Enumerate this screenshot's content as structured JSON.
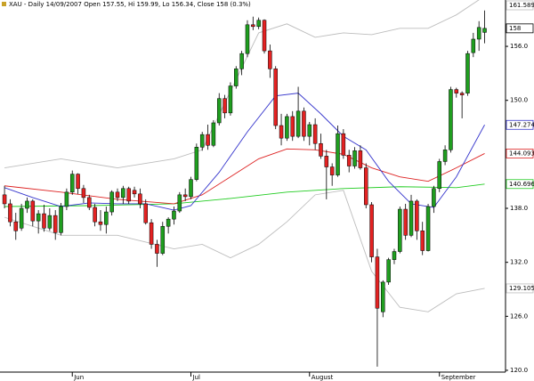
{
  "chart_data": {
    "type": "candlestick",
    "title": "XAU - Daily 14/09/2007 Open 157.55, Hi 159.99, Lo 156.34, Close 158 (0.3%)",
    "xlim": [
      -0.8,
      88.7
    ],
    "ylim": [
      119.8,
      161.15
    ],
    "xticks": [
      {
        "value": 12,
        "label": "Jun"
      },
      {
        "value": 33,
        "label": "Jul"
      },
      {
        "value": 54,
        "label": "August"
      },
      {
        "value": 77,
        "label": "September"
      }
    ],
    "yticks": [
      {
        "value": 120,
        "label": "120.0"
      },
      {
        "value": 126,
        "label": "126.0"
      },
      {
        "value": 132,
        "label": "132.0"
      },
      {
        "value": 138,
        "label": "138.0"
      },
      {
        "value": 150,
        "label": "150.0"
      },
      {
        "value": 156,
        "label": "156.0"
      }
    ],
    "up_color": "#1f9e1f",
    "down_color": "#e32222",
    "open": [
      139.5,
      138.5,
      136.5,
      135.8,
      138,
      138.8,
      136.6,
      137.4,
      135.8,
      137.2,
      135.3,
      138.2,
      139.8,
      141.8,
      140.2,
      139.2,
      138.1,
      136.5,
      136.2,
      137.6,
      139.8,
      139.2,
      140.2,
      140,
      139.6,
      138.5,
      136.4,
      134,
      133,
      136,
      136.8,
      137.7,
      139.5,
      139.3,
      141.2,
      144.8,
      146.2,
      145,
      147.5,
      150.2,
      148.6,
      151.6,
      153.5,
      155.2,
      158.4,
      158.2,
      158.9,
      155.5,
      153.5,
      147.2,
      145.8,
      148.2,
      146,
      148.8,
      146,
      147.3,
      145.2,
      143.8,
      142.6,
      141.7,
      146.3,
      143.9,
      142.7,
      144.4,
      142.5,
      138.4,
      132.6,
      126.5,
      129.8,
      132.3,
      133.2,
      137.9,
      135,
      138.8,
      135.5,
      133.3,
      138.2,
      140.2,
      143.2,
      144.5,
      151.2,
      150.8,
      150.8,
      155.3,
      156.8,
      157.55
    ],
    "high": [
      140.5,
      139,
      137.5,
      138.5,
      139.2,
      139,
      137.8,
      138.4,
      138,
      137.8,
      138.6,
      140.2,
      142.2,
      141.9,
      140.6,
      139.5,
      138.5,
      137.8,
      138.2,
      140,
      140.2,
      140.5,
      140.4,
      140.4,
      140.2,
      139,
      136.8,
      134.5,
      136.5,
      137,
      138.2,
      139.8,
      140.2,
      141.5,
      145.2,
      146.5,
      147.3,
      147.8,
      150.8,
      150.6,
      152,
      153.8,
      155.5,
      158.9,
      159.3,
      159.2,
      159,
      156.2,
      153.8,
      148.5,
      148.5,
      148.8,
      151.5,
      149.2,
      147.6,
      148,
      146.3,
      144.5,
      143,
      147.2,
      146.8,
      144.5,
      144.8,
      145,
      143,
      138.7,
      133.5,
      130,
      132.5,
      133.5,
      138.2,
      138.5,
      139.5,
      139,
      136.5,
      138.5,
      140.5,
      143.5,
      145,
      151.5,
      151.4,
      151,
      155.5,
      157.5,
      158.8,
      159.99
    ],
    "low": [
      138,
      136,
      134.5,
      135.5,
      137.5,
      136,
      135.2,
      135.4,
      135.5,
      134.5,
      135,
      137.8,
      139.5,
      139.6,
      138.6,
      137.8,
      136,
      135.5,
      135.2,
      137.2,
      138.8,
      138.5,
      138.5,
      139.2,
      138,
      136.2,
      133.5,
      131.5,
      132.8,
      135.2,
      136.2,
      137.5,
      138.8,
      139,
      141,
      144.4,
      144.5,
      144.8,
      147.2,
      148,
      148.3,
      151.3,
      152.8,
      154.8,
      157.8,
      157.9,
      155.2,
      152.5,
      146.8,
      145,
      145.5,
      145.5,
      145.8,
      145.5,
      145,
      144.5,
      143.5,
      139,
      140.5,
      141.5,
      143.5,
      142,
      142.4,
      142.3,
      138,
      132,
      120.4,
      125.9,
      129.5,
      131.8,
      133,
      134.5,
      134.8,
      134.5,
      132.8,
      133.2,
      137.5,
      139.8,
      142.8,
      144.2,
      150.3,
      148,
      150.5,
      154.8,
      155.5,
      156.34
    ],
    "close": [
      138.5,
      136.5,
      135.5,
      138,
      138.8,
      136.6,
      137.4,
      135.8,
      137.2,
      135.3,
      138.2,
      139.8,
      141.8,
      140.2,
      139.2,
      138.1,
      136.5,
      136.2,
      137.6,
      139.8,
      139.2,
      140.2,
      138.8,
      139.6,
      138.5,
      136.4,
      134,
      133,
      136,
      136.8,
      137.7,
      139.5,
      139.3,
      141.2,
      144.8,
      146.2,
      145,
      147.5,
      150.2,
      148.6,
      151.6,
      153.5,
      155.2,
      158.4,
      158.2,
      158.9,
      155.5,
      153.5,
      147.2,
      145.8,
      148.2,
      146,
      148.8,
      146,
      147.3,
      145.2,
      143.8,
      142.6,
      141.7,
      146.3,
      143.9,
      142.7,
      144.4,
      142.5,
      138.4,
      132.6,
      126.9,
      129.8,
      132.3,
      133.2,
      137.9,
      135,
      138.8,
      135.5,
      133.3,
      138.2,
      140.2,
      143.2,
      144.5,
      151.2,
      150.8,
      150.6,
      155.2,
      156.8,
      158.1,
      158
    ],
    "lines": [
      {
        "color": "#bdbdbd",
        "x": [
          0,
          10,
          20,
          30,
          35,
          40,
          45,
          50,
          55,
          60,
          65,
          70,
          75,
          80,
          85
        ],
        "values": [
          142.5,
          143.5,
          142.5,
          143.5,
          144.5,
          151,
          157.5,
          158.5,
          157,
          157.5,
          157.3,
          158,
          158,
          159.5,
          161.589
        ]
      },
      {
        "color": "#bdbdbd",
        "x": [
          0,
          10,
          20,
          30,
          35,
          40,
          45,
          50,
          55,
          60,
          65,
          70,
          75,
          80,
          85
        ],
        "values": [
          137,
          135,
          135,
          133.5,
          134,
          132.5,
          134,
          136.5,
          139.5,
          140,
          131,
          127,
          126.5,
          128.5,
          129.105
        ]
      },
      {
        "color": "#22cc22",
        "x": [
          0,
          15,
          30,
          40,
          50,
          60,
          70,
          80,
          85
        ],
        "values": [
          138.2,
          138.3,
          138.5,
          139.1,
          139.8,
          140.2,
          140.4,
          140.3,
          140.696
        ]
      },
      {
        "color": "#dd2222",
        "x": [
          0,
          10,
          20,
          30,
          35,
          40,
          45,
          50,
          55,
          60,
          65,
          70,
          75,
          80,
          85
        ],
        "values": [
          140.5,
          139.8,
          139,
          138.5,
          139.5,
          141.5,
          143.5,
          144.6,
          144.5,
          144,
          142.5,
          141.5,
          141,
          142.5,
          144.093
        ]
      },
      {
        "color": "#3535cc",
        "x": [
          0,
          5,
          10,
          15,
          20,
          25,
          30,
          33,
          38,
          43,
          48,
          52,
          56,
          60,
          64,
          68,
          72,
          76,
          80,
          85
        ],
        "values": [
          140.3,
          139.2,
          138.2,
          138.6,
          138.5,
          138.5,
          137.8,
          138.3,
          142,
          146.5,
          150.5,
          150.8,
          148.5,
          146,
          144.5,
          141,
          138.5,
          138.1,
          141.5,
          147.274
        ]
      }
    ]
  }
}
